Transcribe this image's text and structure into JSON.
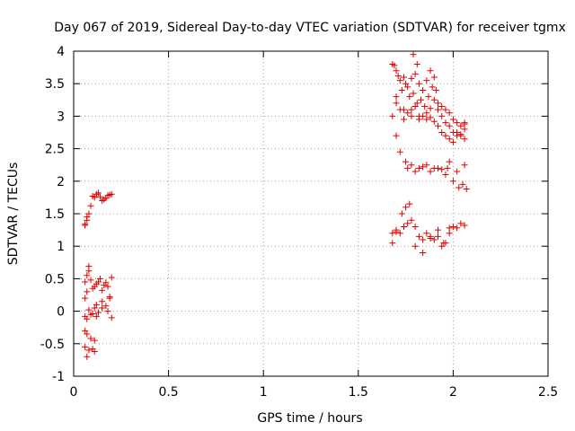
{
  "chart_data": {
    "type": "scatter",
    "title": "Day 067 of 2019, Sidereal Day-to-day VTEC variation (SDTVAR) for receiver tgmx",
    "xlabel": "GPS time / hours",
    "ylabel": "SDTVAR / TECUs",
    "xlim": [
      0,
      2.5
    ],
    "ylim": [
      -1,
      4
    ],
    "xticks": [
      0,
      0.5,
      1,
      1.5,
      2,
      2.5
    ],
    "xtick_labels": [
      "0",
      "0.5",
      "1",
      "1.5",
      "2",
      "2.5"
    ],
    "yticks": [
      -1,
      -0.5,
      0,
      0.5,
      1,
      1.5,
      2,
      2.5,
      3,
      3.5,
      4
    ],
    "ytick_labels": [
      "-1",
      "-0.5",
      "0",
      "0.5",
      "1",
      "1.5",
      "2",
      "2.5",
      "3",
      "3.5",
      "4"
    ],
    "grid": true,
    "marker": "+",
    "color": "#dd0000",
    "series": [
      {
        "name": "SDTVAR",
        "x": [
          0.06,
          0.07,
          0.08,
          0.1,
          0.12,
          0.14,
          0.16,
          0.18,
          0.2,
          0.06,
          0.07,
          0.09,
          0.11,
          0.13,
          0.15,
          0.17,
          0.19,
          0.06,
          0.07,
          0.08,
          0.08,
          0.09,
          0.07,
          0.06,
          0.1,
          0.12,
          0.14,
          0.16,
          0.18,
          0.2,
          0.11,
          0.13,
          0.15,
          0.17,
          0.19,
          0.12,
          0.15,
          0.18,
          0.2,
          0.06,
          0.07,
          0.09,
          0.11,
          0.13,
          0.08,
          0.1,
          0.12,
          0.15,
          0.17,
          0.19,
          0.06,
          0.07,
          0.09,
          0.11,
          0.06,
          0.08,
          0.07,
          0.1,
          0.11,
          1.68,
          1.7,
          1.72,
          1.74,
          1.76,
          1.78,
          1.8,
          1.82,
          1.84,
          1.86,
          1.88,
          1.9,
          1.69,
          1.71,
          1.73,
          1.75,
          1.77,
          1.79,
          1.81,
          1.83,
          1.85,
          1.87,
          1.89,
          1.91,
          1.7,
          1.74,
          1.78,
          1.82,
          1.86,
          1.88,
          1.92,
          1.94,
          1.96,
          1.98,
          2.0,
          2.02,
          2.04,
          2.06,
          1.9,
          1.92,
          1.94,
          1.96,
          1.98,
          2.0,
          2.02,
          2.04,
          2.06,
          1.68,
          1.7,
          1.74,
          1.78,
          1.82,
          1.86,
          1.9,
          1.94,
          1.98,
          2.02,
          2.06,
          1.7,
          1.72,
          1.76,
          1.8,
          1.84,
          1.88,
          1.92,
          1.96,
          2.0,
          2.04,
          2.06,
          1.72,
          1.75,
          1.78,
          1.82,
          1.86,
          1.9,
          1.94,
          1.98,
          2.02,
          2.06,
          1.76,
          1.8,
          1.84,
          1.88,
          1.92,
          1.96,
          2.0,
          2.03,
          2.05,
          2.07,
          1.68,
          1.7,
          1.72,
          1.74,
          1.76,
          1.78,
          1.8,
          1.82,
          1.84,
          1.86,
          1.88,
          1.9,
          1.92,
          1.94,
          1.96,
          1.98,
          2.0,
          2.02,
          2.04,
          2.06,
          1.73,
          1.75,
          1.77,
          1.8,
          1.84,
          1.88,
          1.92,
          1.95,
          1.98,
          1.68,
          1.7,
          1.79,
          1.81,
          1.97
        ],
        "y": [
          1.32,
          1.4,
          1.5,
          1.77,
          1.8,
          1.76,
          1.72,
          1.78,
          1.8,
          1.34,
          1.45,
          1.62,
          1.75,
          1.82,
          1.7,
          1.74,
          1.79,
          0.45,
          0.55,
          0.69,
          0.62,
          0.48,
          0.3,
          0.2,
          0.35,
          0.42,
          0.5,
          0.4,
          0.38,
          0.52,
          0.38,
          0.45,
          0.32,
          0.44,
          0.22,
          0.1,
          0.05,
          0.0,
          -0.1,
          -0.08,
          -0.12,
          -0.05,
          0.05,
          -0.02,
          0.02,
          -0.04,
          -0.08,
          0.15,
          0.08,
          0.2,
          -0.3,
          -0.35,
          -0.42,
          -0.45,
          -0.55,
          -0.6,
          -0.7,
          -0.58,
          -0.62,
          3.8,
          3.7,
          3.55,
          3.6,
          3.45,
          3.58,
          3.65,
          3.5,
          3.4,
          3.55,
          3.7,
          3.6,
          3.78,
          3.62,
          3.4,
          3.5,
          3.3,
          3.35,
          3.2,
          3.25,
          3.15,
          3.3,
          3.45,
          3.4,
          3.3,
          3.1,
          3.0,
          2.95,
          3.05,
          3.12,
          3.2,
          3.15,
          3.1,
          3.05,
          2.95,
          2.9,
          2.85,
          2.8,
          3.25,
          3.1,
          3.0,
          2.9,
          2.85,
          2.75,
          2.7,
          2.72,
          2.88,
          3.0,
          2.7,
          2.95,
          3.1,
          3.0,
          2.95,
          2.92,
          2.75,
          2.65,
          2.75,
          2.65,
          3.2,
          3.1,
          3.05,
          3.15,
          3.0,
          2.98,
          2.85,
          2.7,
          2.6,
          2.7,
          2.9,
          2.45,
          2.3,
          2.25,
          2.2,
          2.25,
          2.2,
          2.18,
          2.3,
          2.15,
          2.25,
          2.2,
          2.15,
          2.22,
          2.15,
          2.2,
          2.1,
          2.0,
          1.9,
          1.95,
          1.88,
          1.05,
          1.25,
          1.2,
          1.3,
          1.35,
          1.4,
          1.3,
          1.15,
          1.1,
          1.2,
          1.15,
          1.1,
          1.25,
          1.0,
          1.05,
          1.2,
          1.3,
          1.28,
          1.35,
          1.32,
          1.5,
          1.6,
          1.65,
          1.0,
          0.9,
          1.12,
          1.15,
          1.05,
          1.28,
          1.2,
          1.22,
          3.95,
          3.8,
          2.2
        ]
      }
    ]
  }
}
